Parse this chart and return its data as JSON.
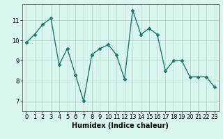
{
  "x": [
    0,
    1,
    2,
    3,
    4,
    5,
    6,
    7,
    8,
    9,
    10,
    11,
    12,
    13,
    14,
    15,
    16,
    17,
    18,
    19,
    20,
    21,
    22,
    23
  ],
  "y": [
    9.9,
    10.3,
    10.8,
    11.1,
    8.8,
    9.6,
    8.3,
    7.0,
    9.3,
    9.6,
    9.8,
    9.3,
    8.1,
    11.5,
    10.3,
    10.6,
    10.3,
    8.5,
    9.0,
    9.0,
    8.2,
    8.2,
    8.2,
    7.7
  ],
  "line_color": "#1a7a6e",
  "marker": "D",
  "markersize": 2.5,
  "linewidth": 1.0,
  "bg_color": "#d9f5f0",
  "grid_color": "#c0d8d4",
  "xlabel": "Humidex (Indice chaleur)",
  "xlabel_fontsize": 7,
  "tick_fontsize": 6,
  "xlim": [
    -0.5,
    23.5
  ],
  "ylim": [
    6.5,
    11.8
  ],
  "yticks": [
    7,
    8,
    9,
    10,
    11
  ],
  "xticks": [
    0,
    1,
    2,
    3,
    4,
    5,
    6,
    7,
    8,
    9,
    10,
    11,
    12,
    13,
    14,
    15,
    16,
    17,
    18,
    19,
    20,
    21,
    22,
    23
  ]
}
